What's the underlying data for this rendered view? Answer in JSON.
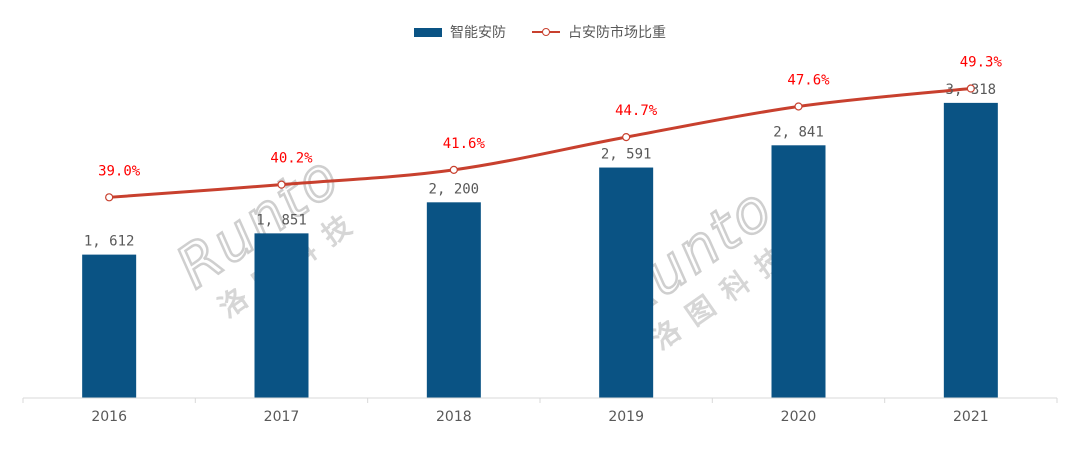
{
  "legend": {
    "bar_label": "智能安防",
    "line_label": "占安防市场比重"
  },
  "colors": {
    "bar": "#0a5384",
    "line": "#c8402e",
    "pct_label": "#ff0000",
    "axis": "#d9d9d9"
  },
  "watermark": {
    "latin": "Runto",
    "cjk": "洛图科技"
  },
  "chart_data": {
    "type": "bar",
    "categories": [
      "2016",
      "2017",
      "2018",
      "2019",
      "2020",
      "2021"
    ],
    "series": [
      {
        "name": "智能安防",
        "type": "bar",
        "values": [
          1612,
          1851,
          2200,
          2591,
          2841,
          3318
        ],
        "labels": [
          "1, 612",
          "1, 851",
          "2, 200",
          "2, 591",
          "2, 841",
          "3, 318"
        ]
      },
      {
        "name": "占安防市场比重",
        "type": "line",
        "values": [
          39.0,
          40.2,
          41.6,
          44.7,
          47.6,
          49.3
        ],
        "labels": [
          "39.0%",
          "40.2%",
          "41.6%",
          "44.7%",
          "47.6%",
          "49.3%"
        ]
      }
    ],
    "bar_axis_range": [
      0,
      3800
    ],
    "line_axis_range": [
      20,
      52
    ],
    "grid": false,
    "legend_position": "top-center"
  }
}
